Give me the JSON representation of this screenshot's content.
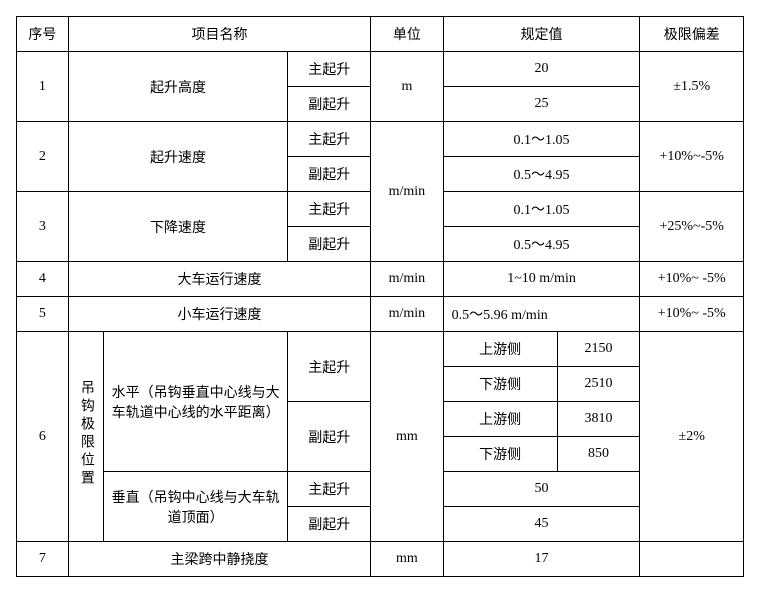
{
  "headers": {
    "seq": "序号",
    "name": "项目名称",
    "unit": "单位",
    "value": "规定值",
    "tol": "极限偏差"
  },
  "labels": {
    "main_lift": "主起升",
    "aux_lift": "副起升",
    "upstream": "上游侧",
    "downstream": "下游侧",
    "hook_limit": "吊钩极限位置"
  },
  "row1": {
    "seq": "1",
    "name": "起升高度",
    "unit": "m",
    "v_main": "20",
    "v_aux": "25",
    "tol": "±1.5%"
  },
  "row2": {
    "seq": "2",
    "name": "起升速度",
    "v_main": "0.1～1.05",
    "v_aux": "0.5～4.95",
    "tol": "+10%~-5%"
  },
  "row3": {
    "seq": "3",
    "name": "下降速度",
    "v_main": "0.1～1.05",
    "v_aux": "0.5～4.95",
    "tol": "+25%~-5%"
  },
  "unit_mmin": "m/min",
  "row4": {
    "seq": "4",
    "name": "大车运行速度",
    "unit": "m/min",
    "value": "1~10 m/min",
    "tol": "+10%~ -5%"
  },
  "row5": {
    "seq": "5",
    "name": "小车运行速度",
    "unit": "m/min",
    "value": "0.5～5.96 m/min",
    "tol": "+10%~ -5%"
  },
  "row6": {
    "seq": "6",
    "horiz_desc": "水平（吊钩垂直中心线与大车轨道中心线的水平距离）",
    "vert_desc": "垂直（吊钩中心线与大车轨道顶面）",
    "unit": "mm",
    "main_up": "2150",
    "main_down": "2510",
    "aux_up": "3810",
    "aux_down": "850",
    "vert_main": "50",
    "vert_aux": "45",
    "tol": "±2%"
  },
  "row7": {
    "seq": "7",
    "name": "主梁跨中静挠度",
    "unit": "mm",
    "value": "17",
    "tol": ""
  }
}
